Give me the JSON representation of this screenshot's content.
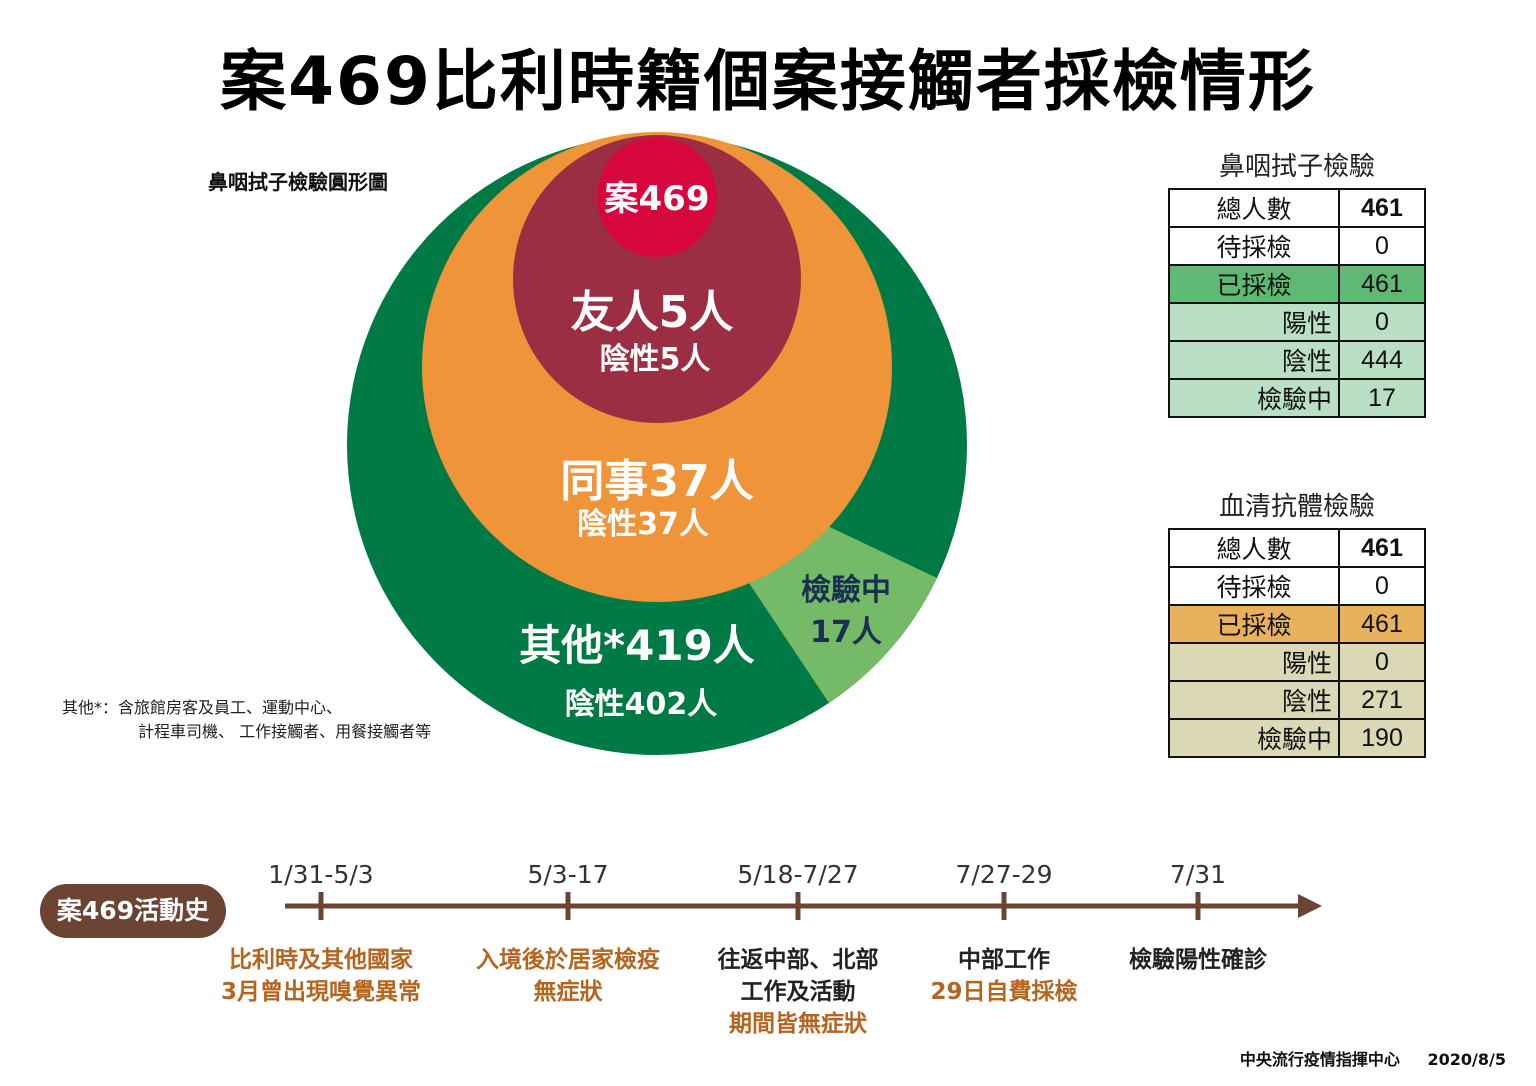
{
  "title": "案469比利時籍個案接觸者採檢情形",
  "chart": {
    "label": "鼻咽拭子檢驗圓形圖",
    "case": "案469",
    "friends": {
      "name": "友人5人",
      "result": "陰性5人"
    },
    "colleagues": {
      "name": "同事37人",
      "result": "陰性37人"
    },
    "others": {
      "name": "其他*419人",
      "result": "陰性402人"
    },
    "testing": {
      "line1": "檢驗中",
      "line2": "17人"
    },
    "colors": {
      "outer": "#007a45",
      "middle": "#f0943a",
      "inner": "#9b2e42",
      "case": "#d7063d",
      "testing": "#75bb67"
    }
  },
  "footnote": {
    "line1": "其他*：含旅館房客及員工、運動中心、",
    "line2": "計程車司機、 工作接觸者、用餐接觸者等"
  },
  "nasal_table": {
    "title": "鼻咽拭子檢驗",
    "rows": [
      {
        "label": "總人數",
        "value": "461"
      },
      {
        "label": "待採檢",
        "value": "0"
      },
      {
        "label": "已採檢",
        "value": "461"
      },
      {
        "label": "陽性",
        "value": "0"
      },
      {
        "label": "陰性",
        "value": "444"
      },
      {
        "label": "檢驗中",
        "value": "17"
      }
    ],
    "colors": {
      "highlight": "#5db974",
      "sub": "#b9dfc4"
    }
  },
  "serum_table": {
    "title": "血清抗體檢驗",
    "rows": [
      {
        "label": "總人數",
        "value": "461"
      },
      {
        "label": "待採檢",
        "value": "0"
      },
      {
        "label": "已採檢",
        "value": "461"
      },
      {
        "label": "陽性",
        "value": "0"
      },
      {
        "label": "陰性",
        "value": "271"
      },
      {
        "label": "檢驗中",
        "value": "190"
      }
    ],
    "colors": {
      "highlight": "#e8b15b",
      "sub": "#dbd8b6"
    }
  },
  "timeline": {
    "badge": "案469活動史",
    "points": [
      {
        "date": "1/31-5/3",
        "lines": [
          "比利時及其他國家",
          "3月曾出現嗅覺異常"
        ]
      },
      {
        "date": "5/3-17",
        "lines": [
          "入境後於居家檢疫",
          "無症狀"
        ]
      },
      {
        "date": "5/18-7/27",
        "lines": [
          "往返中部、北部",
          "工作及活動",
          "期間皆無症狀"
        ]
      },
      {
        "date": "7/27-29",
        "lines": [
          "中部工作",
          "29日自費採檢"
        ]
      },
      {
        "date": "7/31",
        "lines": [
          "檢驗陽性確診"
        ]
      }
    ],
    "color": "#6b4434"
  },
  "footer": {
    "org": "中央流行疫情指揮中心",
    "date": "2020/8/5"
  }
}
